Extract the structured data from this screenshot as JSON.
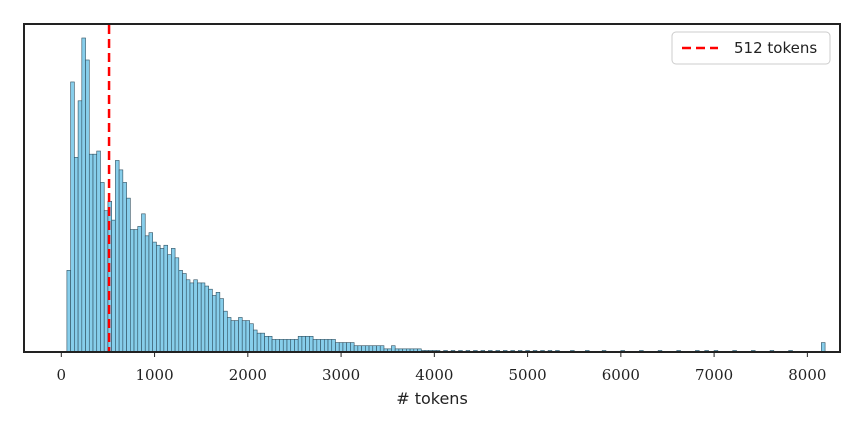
{
  "chart_data": {
    "type": "bar",
    "title": "",
    "xlabel": "# tokens",
    "ylabel": "",
    "xlim": [
      -400,
      8350
    ],
    "ylim": [
      0,
      1.0
    ],
    "xticks": [
      0,
      1000,
      2000,
      3000,
      4000,
      5000,
      6000,
      7000,
      8000
    ],
    "grid": false,
    "legend": {
      "placement": "top-right",
      "entries": [
        {
          "label": "512 tokens",
          "style": "dashed",
          "color": "#ff0000"
        }
      ]
    },
    "reference_line": {
      "x": 512,
      "label": "512 tokens",
      "color": "#ff0000"
    },
    "bar_color": "#87ceeb",
    "bar_edge_color": "#2f4f5f",
    "bin_width": 40,
    "bins": [
      [
        60,
        0.26
      ],
      [
        100,
        0.86
      ],
      [
        140,
        0.62
      ],
      [
        180,
        0.8
      ],
      [
        220,
        1.0
      ],
      [
        260,
        0.93
      ],
      [
        300,
        0.63
      ],
      [
        340,
        0.63
      ],
      [
        380,
        0.64
      ],
      [
        420,
        0.54
      ],
      [
        460,
        0.45
      ],
      [
        500,
        0.48
      ],
      [
        540,
        0.42
      ],
      [
        580,
        0.61
      ],
      [
        620,
        0.58
      ],
      [
        660,
        0.54
      ],
      [
        700,
        0.49
      ],
      [
        740,
        0.39
      ],
      [
        780,
        0.39
      ],
      [
        820,
        0.4
      ],
      [
        860,
        0.44
      ],
      [
        900,
        0.37
      ],
      [
        940,
        0.38
      ],
      [
        980,
        0.35
      ],
      [
        1020,
        0.34
      ],
      [
        1060,
        0.33
      ],
      [
        1100,
        0.34
      ],
      [
        1140,
        0.31
      ],
      [
        1180,
        0.33
      ],
      [
        1220,
        0.3
      ],
      [
        1260,
        0.26
      ],
      [
        1300,
        0.25
      ],
      [
        1340,
        0.23
      ],
      [
        1380,
        0.22
      ],
      [
        1420,
        0.23
      ],
      [
        1460,
        0.22
      ],
      [
        1500,
        0.22
      ],
      [
        1540,
        0.21
      ],
      [
        1580,
        0.2
      ],
      [
        1620,
        0.18
      ],
      [
        1660,
        0.19
      ],
      [
        1700,
        0.17
      ],
      [
        1740,
        0.13
      ],
      [
        1780,
        0.11
      ],
      [
        1820,
        0.1
      ],
      [
        1860,
        0.1
      ],
      [
        1900,
        0.11
      ],
      [
        1940,
        0.1
      ],
      [
        1980,
        0.1
      ],
      [
        2020,
        0.09
      ],
      [
        2060,
        0.07
      ],
      [
        2100,
        0.06
      ],
      [
        2140,
        0.06
      ],
      [
        2180,
        0.05
      ],
      [
        2220,
        0.05
      ],
      [
        2260,
        0.04
      ],
      [
        2300,
        0.04
      ],
      [
        2340,
        0.04
      ],
      [
        2380,
        0.04
      ],
      [
        2420,
        0.04
      ],
      [
        2460,
        0.04
      ],
      [
        2500,
        0.04
      ],
      [
        2540,
        0.05
      ],
      [
        2580,
        0.05
      ],
      [
        2620,
        0.05
      ],
      [
        2660,
        0.05
      ],
      [
        2700,
        0.04
      ],
      [
        2740,
        0.04
      ],
      [
        2780,
        0.04
      ],
      [
        2820,
        0.04
      ],
      [
        2860,
        0.04
      ],
      [
        2900,
        0.04
      ],
      [
        2940,
        0.03
      ],
      [
        2980,
        0.03
      ],
      [
        3020,
        0.03
      ],
      [
        3060,
        0.03
      ],
      [
        3100,
        0.03
      ],
      [
        3140,
        0.02
      ],
      [
        3180,
        0.02
      ],
      [
        3220,
        0.02
      ],
      [
        3260,
        0.02
      ],
      [
        3300,
        0.02
      ],
      [
        3340,
        0.02
      ],
      [
        3380,
        0.02
      ],
      [
        3420,
        0.02
      ],
      [
        3460,
        0.01
      ],
      [
        3500,
        0.01
      ],
      [
        3540,
        0.02
      ],
      [
        3580,
        0.01
      ],
      [
        3620,
        0.01
      ],
      [
        3660,
        0.01
      ],
      [
        3700,
        0.01
      ],
      [
        3740,
        0.01
      ],
      [
        3780,
        0.01
      ],
      [
        3820,
        0.01
      ],
      [
        3860,
        0.005
      ],
      [
        3900,
        0.005
      ],
      [
        3940,
        0.005
      ],
      [
        3980,
        0.005
      ],
      [
        4020,
        0.005
      ],
      [
        4100,
        0.005
      ],
      [
        4180,
        0.005
      ],
      [
        4260,
        0.005
      ],
      [
        4340,
        0.005
      ],
      [
        4420,
        0.005
      ],
      [
        4500,
        0.005
      ],
      [
        4580,
        0.005
      ],
      [
        4660,
        0.005
      ],
      [
        4740,
        0.005
      ],
      [
        4820,
        0.005
      ],
      [
        4900,
        0.005
      ],
      [
        4980,
        0.005
      ],
      [
        5060,
        0.005
      ],
      [
        5140,
        0.005
      ],
      [
        5220,
        0.005
      ],
      [
        5300,
        0.005
      ],
      [
        5460,
        0.005
      ],
      [
        5620,
        0.005
      ],
      [
        5800,
        0.005
      ],
      [
        6000,
        0.005
      ],
      [
        6200,
        0.005
      ],
      [
        6400,
        0.005
      ],
      [
        6600,
        0.005
      ],
      [
        6800,
        0.005
      ],
      [
        6900,
        0.005
      ],
      [
        7000,
        0.005
      ],
      [
        7200,
        0.005
      ],
      [
        7400,
        0.005
      ],
      [
        7600,
        0.005
      ],
      [
        7800,
        0.005
      ],
      [
        8150,
        0.03
      ]
    ]
  }
}
